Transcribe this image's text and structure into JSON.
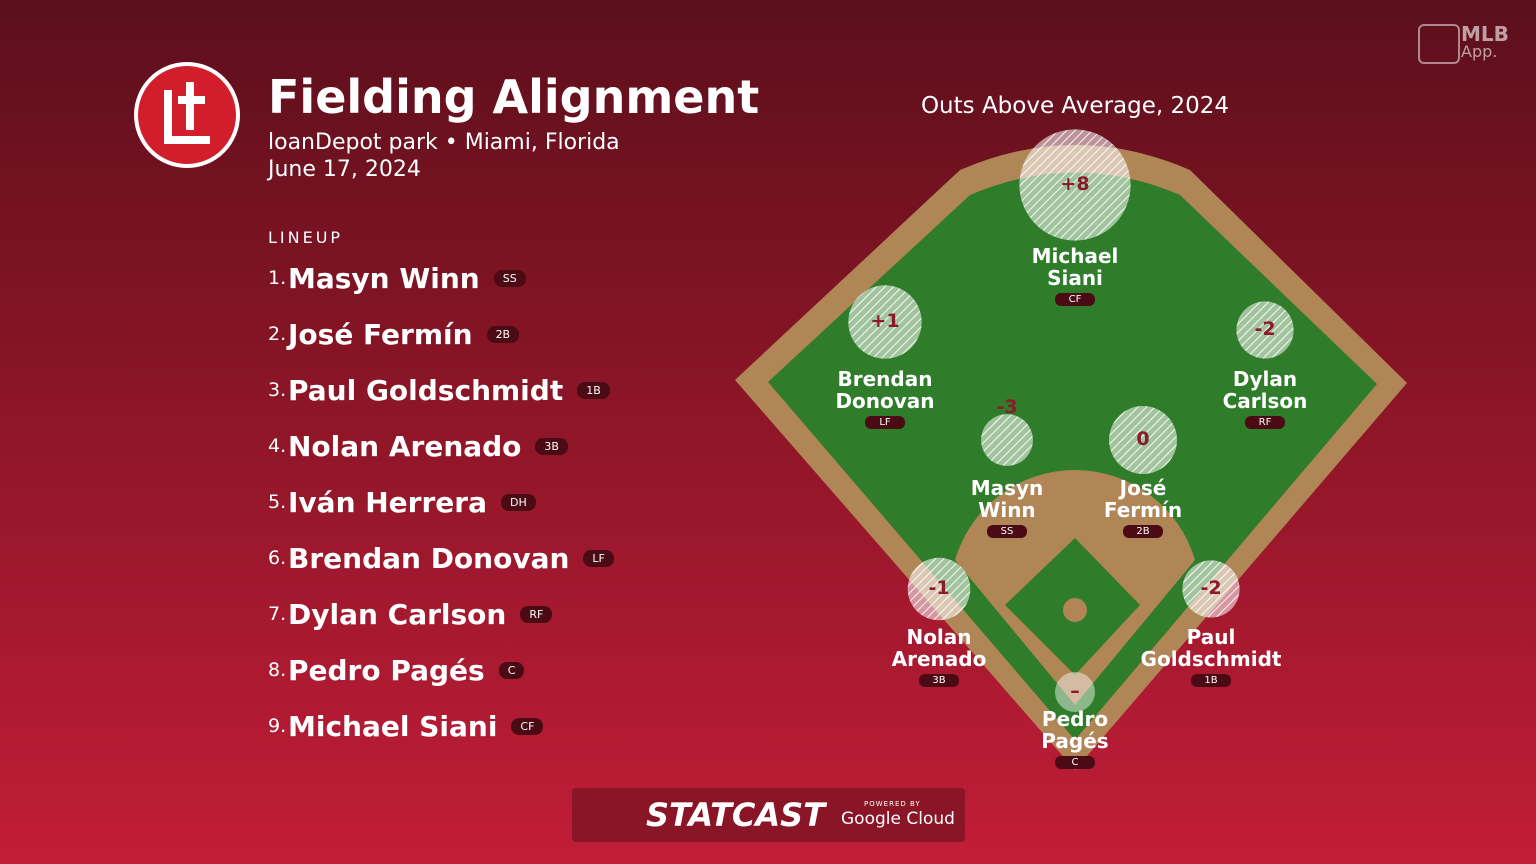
{
  "header": {
    "title": "Fielding Alignment",
    "venue": "loanDepot park • Miami, Florida",
    "date": "June 17, 2024"
  },
  "lineup": {
    "label": "LINEUP",
    "players": [
      {
        "number": "1.",
        "name": "Masyn Winn",
        "position": "SS"
      },
      {
        "number": "2.",
        "name": "José Fermín",
        "position": "2B"
      },
      {
        "number": "3.",
        "name": "Paul Goldschmidt",
        "position": "1B"
      },
      {
        "number": "4.",
        "name": "Nolan Arenado",
        "position": "3B"
      },
      {
        "number": "5.",
        "name": "Iván Herrera",
        "position": "DH"
      },
      {
        "number": "6.",
        "name": "Brendan Donovan",
        "position": "LF"
      },
      {
        "number": "7.",
        "name": "Dylan Carlson",
        "position": "RF"
      },
      {
        "number": "8.",
        "name": "Pedro Pagés",
        "position": "C"
      },
      {
        "number": "9.",
        "name": "Michael Siani",
        "position": "CF"
      }
    ]
  },
  "field": {
    "title": "Outs Above Average, 2024",
    "fielders": [
      {
        "name": "Michael Siani",
        "position": "CF",
        "oaa": {
          "value": 8,
          "label": "+8"
        }
      },
      {
        "name": "Brendan Donovan",
        "position": "LF",
        "oaa": {
          "value": 1,
          "label": "+1"
        }
      },
      {
        "name": "Dylan Carlson",
        "position": "RF",
        "oaa": {
          "value": -2,
          "label": "-2"
        }
      },
      {
        "name": "Masyn Winn",
        "position": "SS",
        "oaa": {
          "value": -3,
          "label": "-3"
        }
      },
      {
        "name": "José Fermín",
        "position": "2B",
        "oaa": {
          "value": 0,
          "label": "0"
        }
      },
      {
        "name": "Nolan Arenado",
        "position": "3B",
        "oaa": {
          "value": -1,
          "label": "-1"
        }
      },
      {
        "name": "Paul Goldschmidt",
        "position": "1B",
        "oaa": {
          "value": -2,
          "label": "-2"
        }
      },
      {
        "name": "Pedro Pagés",
        "position": "C",
        "oaa": {
          "value": null,
          "label": "–"
        }
      }
    ]
  },
  "branding": {
    "app": "MLB",
    "app_sub": "App.",
    "statcast": "STATCAST",
    "powered": "POWERED BY",
    "cloud": "Google Cloud"
  }
}
